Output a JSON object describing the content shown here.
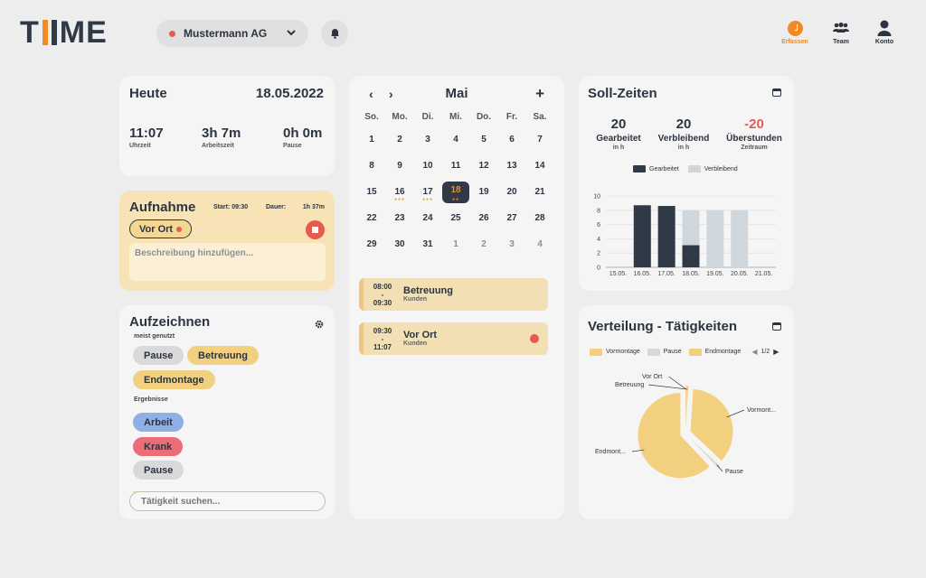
{
  "app": {
    "logo_left": "T",
    "logo_right": "ME",
    "logo_colors": [
      "#f08a24",
      "#2f3a46"
    ]
  },
  "header": {
    "company": "Mustermann AG",
    "nav": [
      {
        "label": "Erfassen",
        "icon": "clock-icon",
        "active": true
      },
      {
        "label": "Team",
        "icon": "team-icon"
      },
      {
        "label": "Konto",
        "icon": "user-icon"
      }
    ]
  },
  "today": {
    "title": "Heute",
    "date": "18.05.2022",
    "stats": [
      {
        "value": "11:07",
        "label": "Uhrzeit"
      },
      {
        "value": "3h 7m",
        "label": "Arbeitszeit"
      },
      {
        "value": "0h 0m",
        "label": "Pause"
      }
    ]
  },
  "recording": {
    "title": "Aufnahme",
    "start": "Start: 09:30",
    "duration_label": "Dauer:",
    "duration": "1h 37m",
    "activity": "Vor Ort",
    "description_placeholder": "Beschreibung hinzufügen..."
  },
  "record": {
    "title": "Aufzeichnen",
    "most_used_label": "meist genutzt",
    "most_used": [
      {
        "label": "Pause",
        "color": "#d9d9d9"
      },
      {
        "label": "Betreuung",
        "color": "#f3d07f"
      },
      {
        "label": "Endmontage",
        "color": "#f3d07f"
      }
    ],
    "results_label": "Ergebnisse",
    "results": [
      {
        "label": "Arbeit",
        "color": "#8fb0e6"
      },
      {
        "label": "Krank",
        "color": "#ea6d78"
      },
      {
        "label": "Pause",
        "color": "#d9d9d9"
      }
    ],
    "search_placeholder": "Tätigkeit suchen..."
  },
  "calendar": {
    "month": "Mai",
    "prev": "‹",
    "next": "›",
    "add": "+",
    "weekdays": [
      "So.",
      "Mo.",
      "Di.",
      "Mi.",
      "Do.",
      "Fr.",
      "Sa."
    ],
    "weeks": [
      [
        "1",
        "2",
        "3",
        "4",
        "5",
        "6",
        "7"
      ],
      [
        "8",
        "9",
        "10",
        "11",
        "12",
        "13",
        "14"
      ],
      [
        "15",
        "16",
        "17",
        "18",
        "19",
        "20",
        "21"
      ],
      [
        "22",
        "23",
        "24",
        "25",
        "26",
        "27",
        "28"
      ],
      [
        "29",
        "30",
        "31",
        "1",
        "2",
        "3",
        "4"
      ]
    ],
    "selected": "18",
    "events": [
      {
        "start": "08:00",
        "sep": "-",
        "end": "09:30",
        "name": "Betreuung",
        "customer": "Kunden",
        "live": false
      },
      {
        "start": "09:30",
        "sep": "-",
        "end": "11:07",
        "name": "Vor Ort",
        "customer": "Kunden",
        "live": true
      }
    ]
  },
  "target_times": {
    "title": "Soll-Zeiten",
    "stats": [
      {
        "value": "20",
        "label": "Gearbeitet",
        "unit": "in h",
        "color": "#2b3440"
      },
      {
        "value": "20",
        "label": "Verbleibend",
        "unit": "in h",
        "color": "#2b3440"
      },
      {
        "value": "-20",
        "label": "Überstunden",
        "unit": "Zeitraum",
        "color": "#e45b4f"
      }
    ]
  },
  "distribution": {
    "title": "Verteilung - Tätigkeiten",
    "page": "1/2"
  },
  "chart_data": [
    {
      "type": "bar",
      "title": "",
      "categories": [
        "15.05.",
        "16.05.",
        "17.05.",
        "18.05.",
        "19.05.",
        "20.05.",
        "21.05."
      ],
      "series": [
        {
          "name": "Gearbeitet",
          "color": "#2f3a46",
          "values": [
            0,
            8.7,
            8.6,
            3.1,
            0,
            0,
            0
          ]
        },
        {
          "name": "Verbleibend",
          "color": "#cfd6dc",
          "values": [
            0,
            0,
            0,
            4.9,
            8,
            8,
            0
          ]
        }
      ],
      "stacked": true,
      "yticks": [
        "0",
        "2",
        "4",
        "6",
        "8",
        "10"
      ],
      "ylim": [
        0,
        10
      ],
      "grid": true,
      "legend": "top"
    },
    {
      "type": "pie",
      "title": "",
      "legend": "top",
      "legend_entries": [
        {
          "name": "Vormontage",
          "color": "#f3d07f"
        },
        {
          "name": "Pause",
          "color": "#d9d9d9"
        },
        {
          "name": "Endmontage",
          "color": "#f3d07f"
        }
      ],
      "slices": [
        {
          "name": "Vor Ort",
          "label": "Vor Ort",
          "value": 0.5
        },
        {
          "name": "Betreuung",
          "label": "Betreuung",
          "value": 0.5
        },
        {
          "name": "Vormontage",
          "label": "Vormont...",
          "value": 36
        },
        {
          "name": "Pause",
          "label": "Pause",
          "value": 1
        },
        {
          "name": "Endmontage",
          "label": "Endmont...",
          "value": 62
        }
      ]
    }
  ]
}
